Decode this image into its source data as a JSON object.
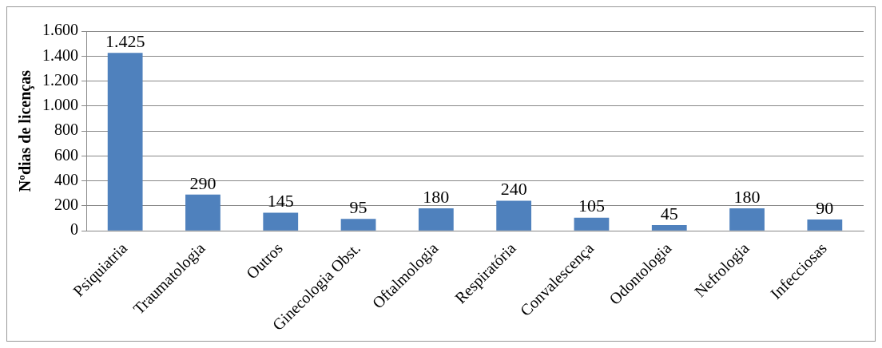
{
  "chart_data": {
    "type": "bar",
    "ylabel": "Nºdias de licenças",
    "categories": [
      "Psiquiatria",
      "Traumatologia",
      "Outros",
      "Ginecologia Obst.",
      "Oftalmologia",
      "Respiratória",
      "Convalescença",
      "Odontologia",
      "Nefrologia",
      "Infecciosas"
    ],
    "values": [
      1425,
      290,
      145,
      95,
      180,
      240,
      105,
      45,
      180,
      90
    ],
    "value_labels": [
      "1.425",
      "290",
      "145",
      "95",
      "180",
      "240",
      "105",
      "45",
      "180",
      "90"
    ],
    "color": "#4f81bd",
    "ylim": [
      0,
      1600
    ],
    "yticks": [
      0,
      200,
      400,
      600,
      800,
      {
        "value": 1000,
        "label": "1.000"
      },
      {
        "value": 1200,
        "label": "1.200"
      },
      {
        "value": 1400,
        "label": "1.400"
      },
      {
        "value": 1600,
        "label": "1.600"
      }
    ],
    "grid": "y",
    "legend": false
  }
}
